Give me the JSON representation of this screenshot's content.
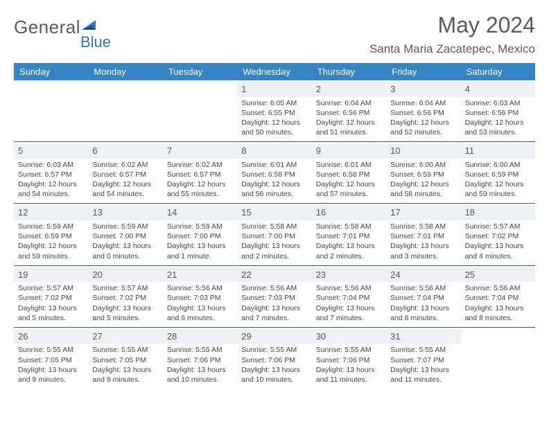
{
  "brand": {
    "textGray": "General",
    "textBlue": "Blue"
  },
  "title": "May 2024",
  "location": "Santa Maria Zacatepec, Mexico",
  "dayNames": [
    "Sunday",
    "Monday",
    "Tuesday",
    "Wednesday",
    "Thursday",
    "Friday",
    "Saturday"
  ],
  "colors": {
    "headerBg": "#3584c6",
    "headerText": "#ffffff",
    "numBg": "#eef1f3",
    "rule": "#2f5b84",
    "bodyText": "#444444",
    "titleText": "#5a5a5a",
    "brandBlue": "#2f78b8"
  },
  "weeks": [
    [
      {
        "n": "",
        "empty": true
      },
      {
        "n": "",
        "empty": true
      },
      {
        "n": "",
        "empty": true
      },
      {
        "n": "1",
        "sunrise": "6:05 AM",
        "sunset": "6:55 PM",
        "daylight": "12 hours and 50 minutes."
      },
      {
        "n": "2",
        "sunrise": "6:04 AM",
        "sunset": "6:56 PM",
        "daylight": "12 hours and 51 minutes."
      },
      {
        "n": "3",
        "sunrise": "6:04 AM",
        "sunset": "6:56 PM",
        "daylight": "12 hours and 52 minutes."
      },
      {
        "n": "4",
        "sunrise": "6:03 AM",
        "sunset": "6:56 PM",
        "daylight": "12 hours and 53 minutes."
      }
    ],
    [
      {
        "n": "5",
        "sunrise": "6:03 AM",
        "sunset": "6:57 PM",
        "daylight": "12 hours and 54 minutes."
      },
      {
        "n": "6",
        "sunrise": "6:02 AM",
        "sunset": "6:57 PM",
        "daylight": "12 hours and 54 minutes."
      },
      {
        "n": "7",
        "sunrise": "6:02 AM",
        "sunset": "6:57 PM",
        "daylight": "12 hours and 55 minutes."
      },
      {
        "n": "8",
        "sunrise": "6:01 AM",
        "sunset": "6:58 PM",
        "daylight": "12 hours and 56 minutes."
      },
      {
        "n": "9",
        "sunrise": "6:01 AM",
        "sunset": "6:58 PM",
        "daylight": "12 hours and 57 minutes."
      },
      {
        "n": "10",
        "sunrise": "6:00 AM",
        "sunset": "6:59 PM",
        "daylight": "12 hours and 58 minutes."
      },
      {
        "n": "11",
        "sunrise": "6:00 AM",
        "sunset": "6:59 PM",
        "daylight": "12 hours and 59 minutes."
      }
    ],
    [
      {
        "n": "12",
        "sunrise": "5:59 AM",
        "sunset": "6:59 PM",
        "daylight": "12 hours and 59 minutes."
      },
      {
        "n": "13",
        "sunrise": "5:59 AM",
        "sunset": "7:00 PM",
        "daylight": "13 hours and 0 minutes."
      },
      {
        "n": "14",
        "sunrise": "5:59 AM",
        "sunset": "7:00 PM",
        "daylight": "13 hours and 1 minute."
      },
      {
        "n": "15",
        "sunrise": "5:58 AM",
        "sunset": "7:00 PM",
        "daylight": "13 hours and 2 minutes."
      },
      {
        "n": "16",
        "sunrise": "5:58 AM",
        "sunset": "7:01 PM",
        "daylight": "13 hours and 2 minutes."
      },
      {
        "n": "17",
        "sunrise": "5:58 AM",
        "sunset": "7:01 PM",
        "daylight": "13 hours and 3 minutes."
      },
      {
        "n": "18",
        "sunrise": "5:57 AM",
        "sunset": "7:02 PM",
        "daylight": "13 hours and 4 minutes."
      }
    ],
    [
      {
        "n": "19",
        "sunrise": "5:57 AM",
        "sunset": "7:02 PM",
        "daylight": "13 hours and 5 minutes."
      },
      {
        "n": "20",
        "sunrise": "5:57 AM",
        "sunset": "7:02 PM",
        "daylight": "13 hours and 5 minutes."
      },
      {
        "n": "21",
        "sunrise": "5:56 AM",
        "sunset": "7:03 PM",
        "daylight": "13 hours and 6 minutes."
      },
      {
        "n": "22",
        "sunrise": "5:56 AM",
        "sunset": "7:03 PM",
        "daylight": "13 hours and 7 minutes."
      },
      {
        "n": "23",
        "sunrise": "5:56 AM",
        "sunset": "7:04 PM",
        "daylight": "13 hours and 7 minutes."
      },
      {
        "n": "24",
        "sunrise": "5:56 AM",
        "sunset": "7:04 PM",
        "daylight": "13 hours and 8 minutes."
      },
      {
        "n": "25",
        "sunrise": "5:56 AM",
        "sunset": "7:04 PM",
        "daylight": "13 hours and 8 minutes."
      }
    ],
    [
      {
        "n": "26",
        "sunrise": "5:55 AM",
        "sunset": "7:05 PM",
        "daylight": "13 hours and 9 minutes."
      },
      {
        "n": "27",
        "sunrise": "5:55 AM",
        "sunset": "7:05 PM",
        "daylight": "13 hours and 9 minutes."
      },
      {
        "n": "28",
        "sunrise": "5:55 AM",
        "sunset": "7:06 PM",
        "daylight": "13 hours and 10 minutes."
      },
      {
        "n": "29",
        "sunrise": "5:55 AM",
        "sunset": "7:06 PM",
        "daylight": "13 hours and 10 minutes."
      },
      {
        "n": "30",
        "sunrise": "5:55 AM",
        "sunset": "7:06 PM",
        "daylight": "13 hours and 11 minutes."
      },
      {
        "n": "31",
        "sunrise": "5:55 AM",
        "sunset": "7:07 PM",
        "daylight": "13 hours and 11 minutes."
      },
      {
        "n": "",
        "empty": true
      }
    ]
  ]
}
